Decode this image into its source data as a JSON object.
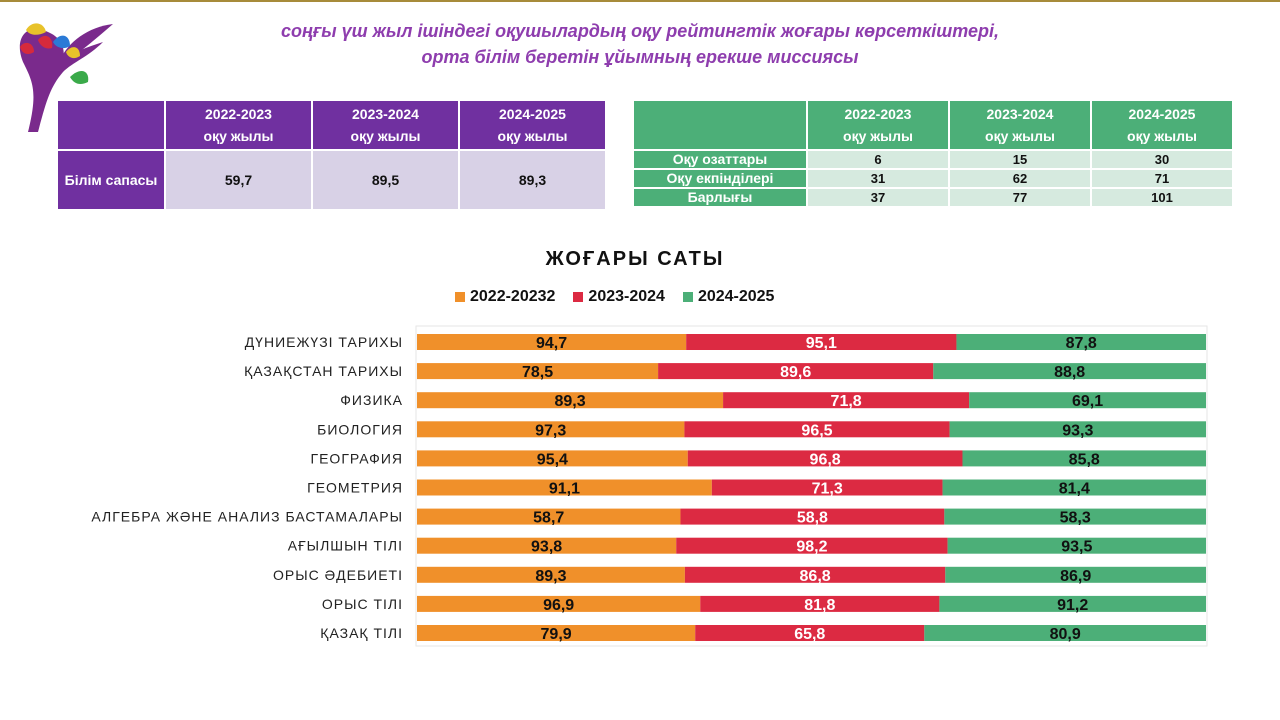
{
  "header": {
    "title_line1": "соңғы үш жыл ішіндегі оқушылардың оқу рейтингтік жоғары көрсеткіштері,",
    "title_line2": "орта білім беретін ұйымның ерекше миссиясы"
  },
  "quality_table": {
    "columns": [
      "2022-2023\nоқу жылы",
      "2023-2024\nоқу жылы",
      "2024-2025\nоқу жылы"
    ],
    "row_label": "Білім сапасы",
    "values": [
      "59,7",
      "89,5",
      "89,3"
    ]
  },
  "students_table": {
    "columns": [
      "2022-2023\nоқу жылы",
      "2023-2024\nоқу жылы",
      "2024-2025\nоқу жылы"
    ],
    "rows": [
      {
        "label": "Оқу озаттары",
        "values": [
          "6",
          "15",
          "30"
        ]
      },
      {
        "label": "Оқу екпінділері",
        "values": [
          "31",
          "62",
          "71"
        ]
      },
      {
        "label": "Барлығы",
        "values": [
          "37",
          "77",
          "101"
        ]
      }
    ]
  },
  "colors": {
    "purple": "#7030a0",
    "green_header": "#4caf78",
    "series_2022": "#f0902a",
    "series_2023": "#dc2a42",
    "series_2024": "#4caf78"
  },
  "chart_data": {
    "type": "bar",
    "stacked": "100-percent horizontal",
    "title": "ЖОҒАРЫ САТЫ",
    "legend_position": "top",
    "categories": [
      "ДҮНИЕЖҮЗІ ТАРИХЫ",
      "ҚАЗАҚСТАН ТАРИХЫ",
      "ФИЗИКА",
      "БИОЛОГИЯ",
      "ГЕОГРАФИЯ",
      "ГЕОМЕТРИЯ",
      "АЛГЕБРА ЖӘНЕ АНАЛИЗ БАСТАМАЛАРЫ",
      "АҒЫЛШЫН ТІЛІ",
      "ОРЫС ӘДЕБИЕТІ",
      "ОРЫС ТІЛІ",
      "ҚАЗАҚ ТІЛІ"
    ],
    "series": [
      {
        "name": "2022-20232",
        "color": "#f0902a",
        "values": [
          94.7,
          78.5,
          89.3,
          97.3,
          95.4,
          91.1,
          58.7,
          93.8,
          89.3,
          96.9,
          79.9
        ],
        "labels": [
          "94,7",
          "78,5",
          "89,3",
          "97,3",
          "95,4",
          "91,1",
          "58,7",
          "93,8",
          "89,3",
          "96,9",
          "79,9"
        ]
      },
      {
        "name": "2023-2024",
        "color": "#dc2a42",
        "values": [
          95.1,
          89.6,
          71.8,
          96.5,
          96.8,
          71.3,
          58.8,
          98.2,
          86.8,
          81.8,
          65.8
        ],
        "labels": [
          "95,1",
          "89,6",
          "71,8",
          "96,5",
          "96,8",
          "71,3",
          "58,8",
          "98,2",
          "86,8",
          "81,8",
          "65,8"
        ]
      },
      {
        "name": "2024-2025",
        "color": "#4caf78",
        "values": [
          87.8,
          88.8,
          69.1,
          93.3,
          85.8,
          81.4,
          58.3,
          93.5,
          86.9,
          91.2,
          80.9
        ],
        "labels": [
          "87,8",
          "88,8",
          "69,1",
          "93,3",
          "85,8",
          "81,4",
          "58,3",
          "93,5",
          "86,9",
          "91,2",
          "80,9"
        ]
      }
    ]
  }
}
